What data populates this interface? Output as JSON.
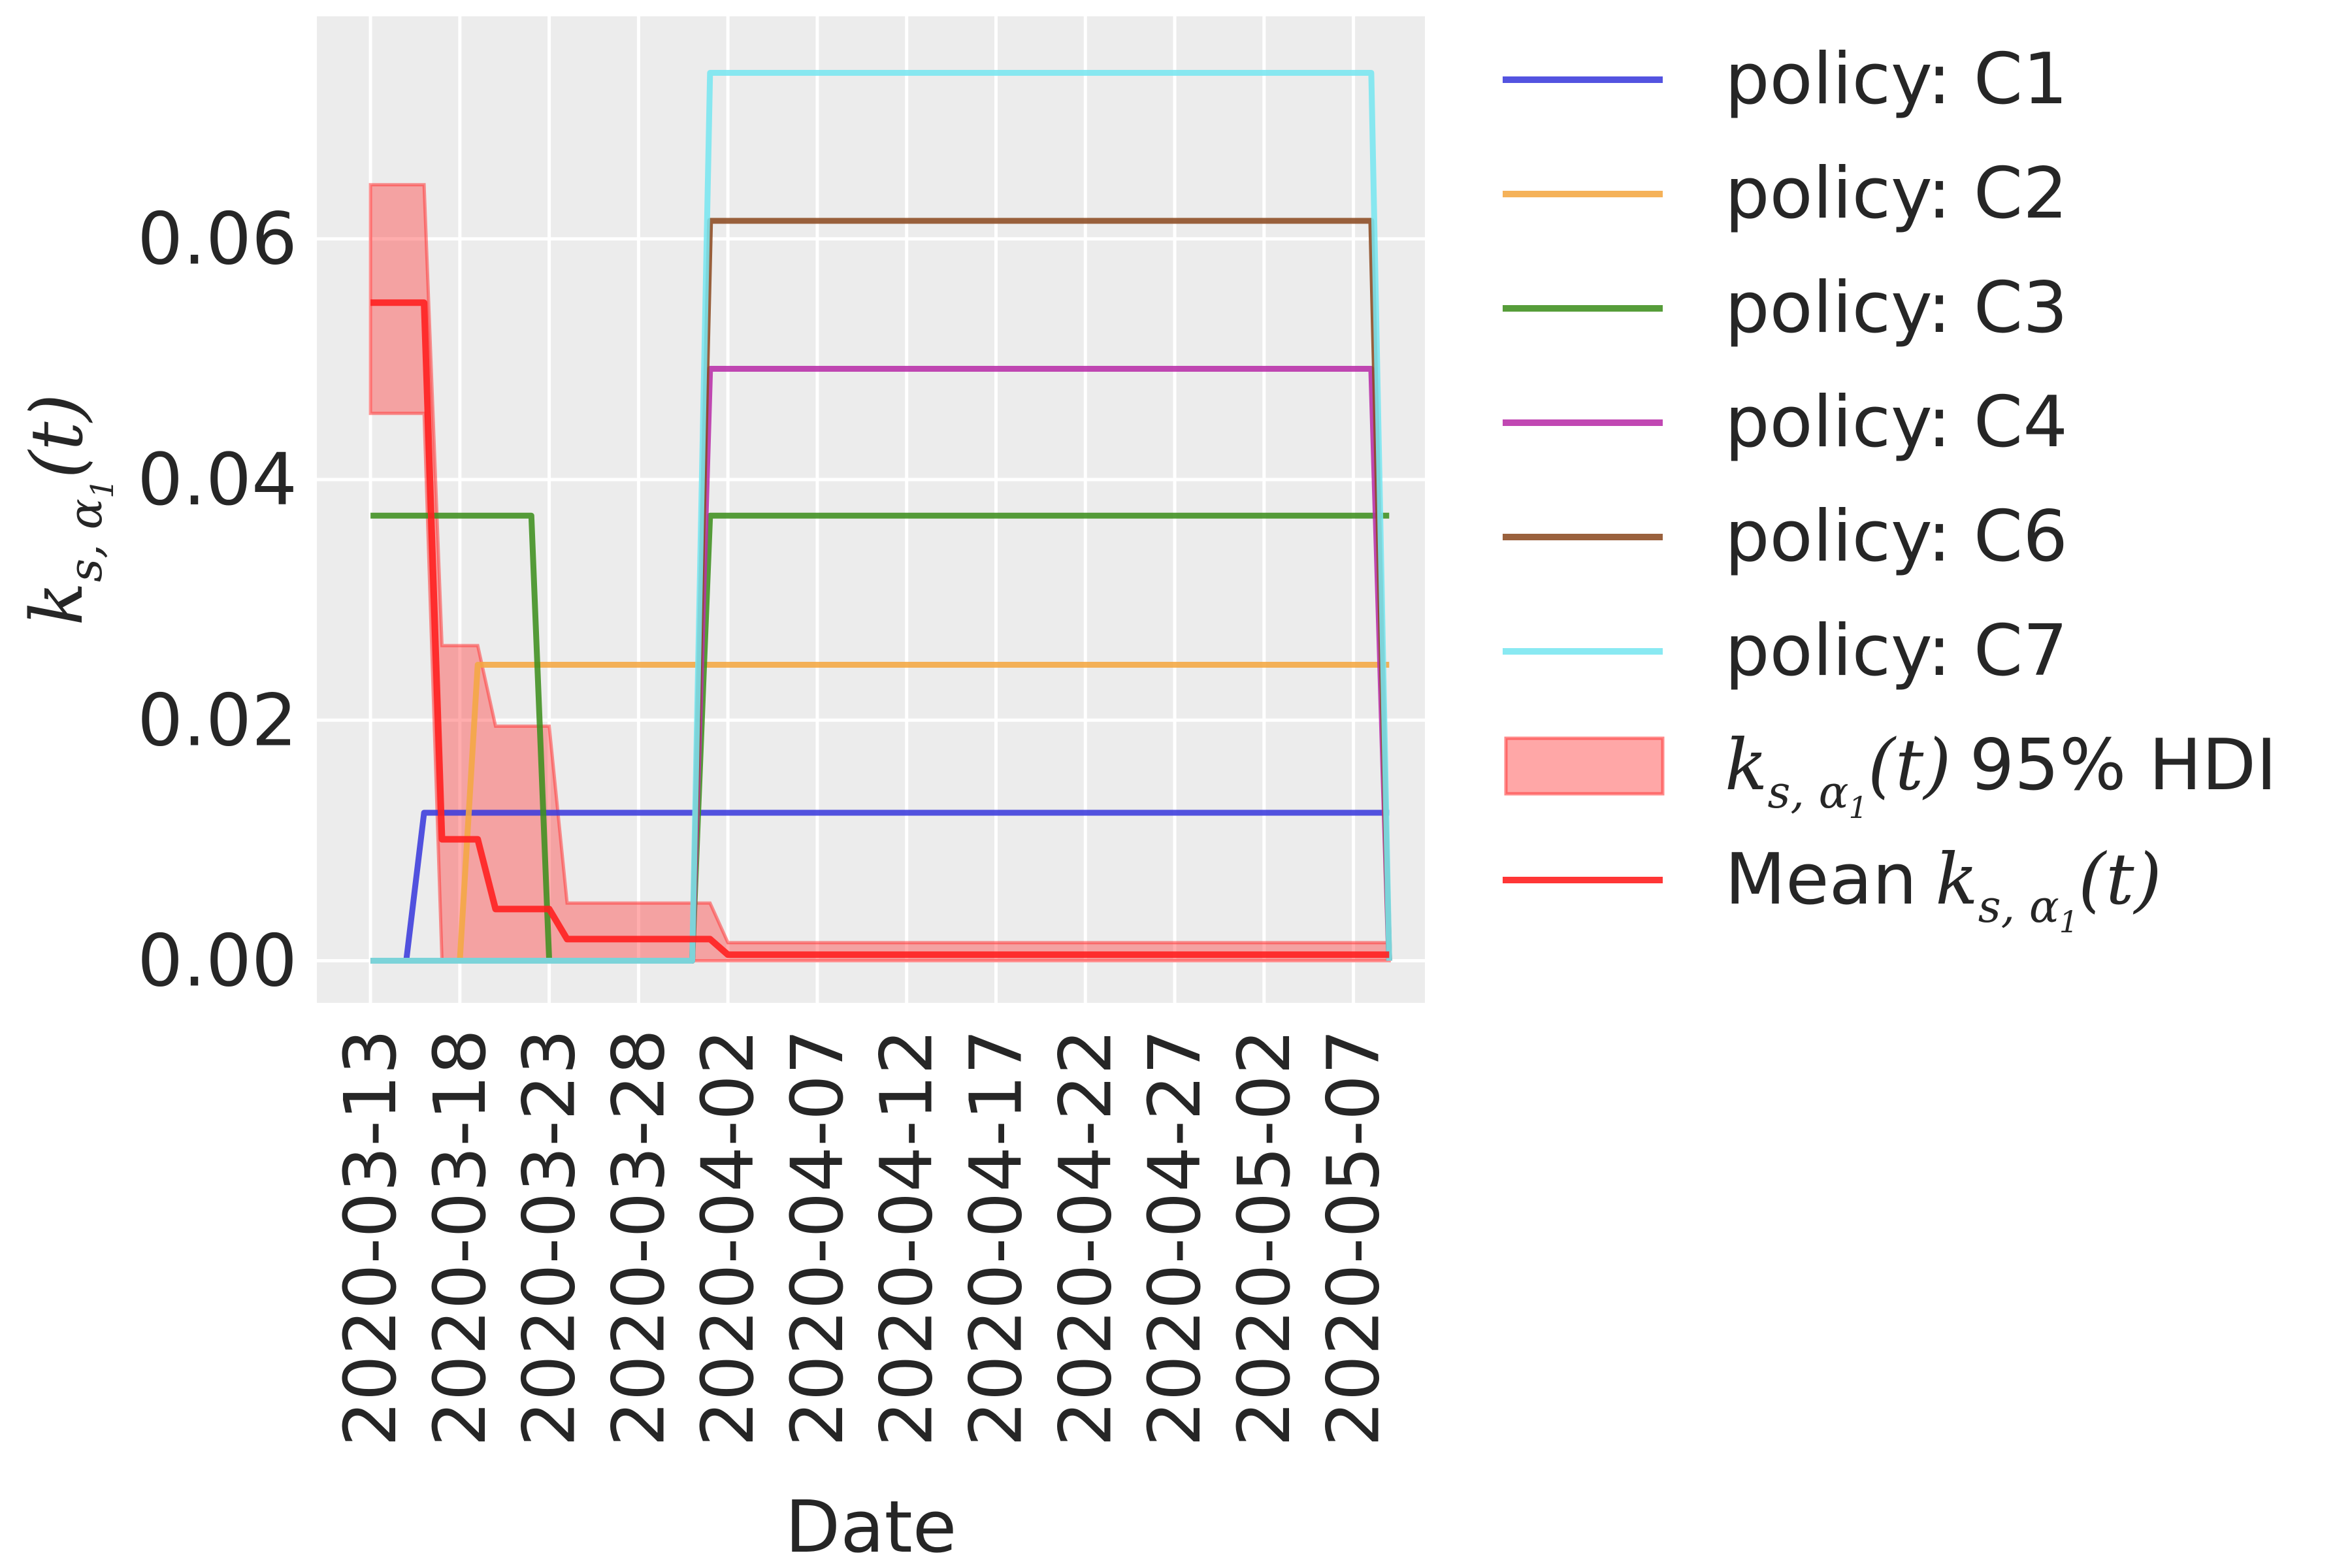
{
  "chart_data": {
    "type": "line",
    "title": "",
    "xlabel": "Date",
    "ylabel": "k_{s,α1}(t)",
    "x_ticks": [
      "2020-03-13",
      "2020-03-18",
      "2020-03-23",
      "2020-03-28",
      "2020-04-02",
      "2020-04-07",
      "2020-04-12",
      "2020-04-17",
      "2020-04-22",
      "2020-04-27",
      "2020-05-02",
      "2020-05-07"
    ],
    "y_ticks": [
      "0.00",
      "0.02",
      "0.04",
      "0.06"
    ],
    "xlim": [
      "2020-03-10",
      "2020-05-11"
    ],
    "ylim": [
      -0.0035,
      0.0785
    ],
    "grid": true,
    "legend_position": "outside-right",
    "series": [
      {
        "name": "policy: C1",
        "color": "#3b3bdc",
        "type": "line",
        "x": [
          "2020-03-13",
          "2020-03-15",
          "2020-03-16",
          "2020-05-08",
          "2020-05-09"
        ],
        "y": [
          0,
          0,
          0.0123,
          0.0123,
          0.0123
        ]
      },
      {
        "name": "policy: C2",
        "color": "#f4a742",
        "type": "line",
        "x": [
          "2020-03-13",
          "2020-03-18",
          "2020-03-19",
          "2020-05-09"
        ],
        "y": [
          0,
          0,
          0.0246,
          0.0246
        ]
      },
      {
        "name": "policy: C3",
        "color": "#3f8f1f",
        "type": "line",
        "x": [
          "2020-03-13",
          "2020-03-22",
          "2020-03-23",
          "2020-03-31",
          "2020-04-01",
          "2020-05-09"
        ],
        "y": [
          0.037,
          0.037,
          0,
          0,
          0.037,
          0.037
        ]
      },
      {
        "name": "policy: C4",
        "color": "#b82fa8",
        "type": "line",
        "x": [
          "2020-03-13",
          "2020-03-31",
          "2020-04-01",
          "2020-05-08",
          "2020-05-09"
        ],
        "y": [
          0,
          0,
          0.0492,
          0.0492,
          0
        ]
      },
      {
        "name": "policy: C6",
        "color": "#8c4b22",
        "type": "line",
        "x": [
          "2020-03-13",
          "2020-03-31",
          "2020-04-01",
          "2020-05-08",
          "2020-05-09"
        ],
        "y": [
          0,
          0,
          0.0615,
          0.0615,
          0
        ]
      },
      {
        "name": "policy: C7",
        "color": "#79e6f0",
        "type": "line",
        "x": [
          "2020-03-13",
          "2020-03-31",
          "2020-04-01",
          "2020-05-08",
          "2020-05-09"
        ],
        "y": [
          0,
          0,
          0.0738,
          0.0738,
          0
        ]
      }
    ],
    "hdi_band": {
      "name": "k_{s,α1}(t) 95% HDI",
      "color": "#ff3b3b",
      "x": [
        "2020-03-13",
        "2020-03-16",
        "2020-03-17",
        "2020-03-19",
        "2020-03-20",
        "2020-03-23",
        "2020-03-24",
        "2020-04-01",
        "2020-04-02",
        "2020-05-09"
      ],
      "upper": [
        0.0645,
        0.0645,
        0.0262,
        0.0262,
        0.0195,
        0.0195,
        0.0048,
        0.0048,
        0.0015,
        0.0015
      ],
      "lower": [
        0.0455,
        0.0455,
        0,
        0,
        0,
        0,
        0,
        0,
        0,
        0
      ]
    },
    "mean_line": {
      "name": "Mean k_{s,α1}(t)",
      "color": "#ff2020",
      "x": [
        "2020-03-13",
        "2020-03-16",
        "2020-03-17",
        "2020-03-18",
        "2020-03-19",
        "2020-03-20",
        "2020-03-23",
        "2020-03-24",
        "2020-04-01",
        "2020-04-02",
        "2020-05-09"
      ],
      "y": [
        0.0547,
        0.0547,
        0.0101,
        0.0101,
        0.0101,
        0.0043,
        0.0043,
        0.0018,
        0.0018,
        0.0005,
        0.0005
      ]
    }
  },
  "legend": {
    "c1": "policy: C1",
    "c2": "policy: C2",
    "c3": "policy: C3",
    "c4": "policy: C4",
    "c6": "policy: C6",
    "c7": "policy: C7",
    "hdi_suffix": "95% HDI",
    "mean_prefix": "Mean"
  },
  "ylabel_parts": {
    "k": "k",
    "sub": "s, α",
    "subsub": "1",
    "t": "(t)"
  }
}
